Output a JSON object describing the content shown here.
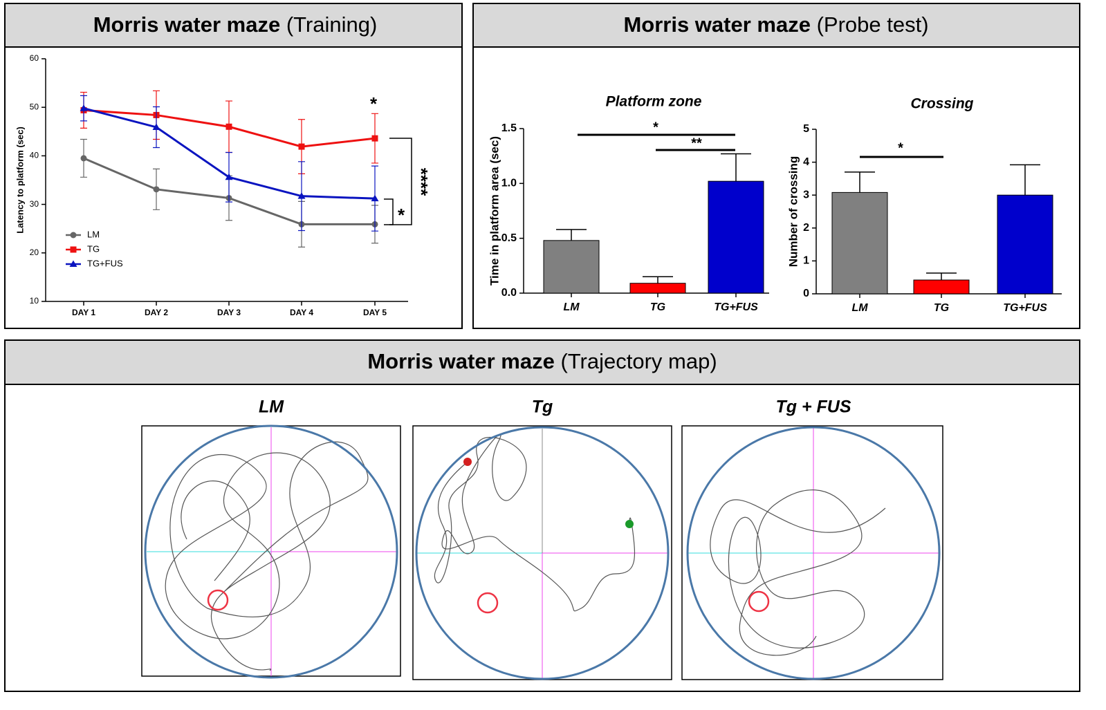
{
  "panels": [
    {
      "title": "Morris water maze",
      "subtitle": "(Training)"
    },
    {
      "title": "Morris water maze",
      "subtitle": "(Probe test)"
    },
    {
      "title": "Morris water maze",
      "subtitle": "(Trajectory map)",
      "maps": [
        "LM",
        "Tg",
        "Tg + FUS"
      ]
    }
  ],
  "chart_data": [
    {
      "type": "line",
      "ylabel": "Latency to platform (sec)",
      "categories": [
        "DAY 1",
        "DAY 2",
        "DAY 3",
        "DAY 4",
        "DAY 5"
      ],
      "ylim": [
        10,
        60
      ],
      "yticks": [
        10,
        20,
        30,
        40,
        50,
        60
      ],
      "series": [
        {
          "name": "LM",
          "color": "#666666",
          "marker": "circle",
          "values": [
            39.5,
            33.1,
            31.3,
            25.9,
            25.9
          ],
          "errors": [
            3.9,
            4.2,
            4.6,
            4.7,
            3.9
          ]
        },
        {
          "name": "TG",
          "color": "#ee1111",
          "marker": "square",
          "values": [
            49.4,
            48.4,
            46.0,
            41.9,
            43.6
          ],
          "errors": [
            3.7,
            5.0,
            5.3,
            5.6,
            5.1
          ]
        },
        {
          "name": "TG+FUS",
          "color": "#0a14c0",
          "marker": "triangle",
          "values": [
            49.8,
            45.9,
            35.6,
            31.7,
            31.2
          ],
          "errors": [
            2.6,
            4.2,
            5.1,
            7.1,
            6.7
          ]
        }
      ],
      "annotations": [
        "*",
        "****",
        "*"
      ]
    },
    {
      "type": "bar",
      "title": "Platform zone",
      "ylabel": "Time in platform area (sec)",
      "categories": [
        "LM",
        "TG",
        "TG+FUS"
      ],
      "values": [
        0.48,
        0.09,
        1.02
      ],
      "errors": [
        0.1,
        0.06,
        0.25
      ],
      "colors": [
        "#808080",
        "#ff0000",
        "#0000cc"
      ],
      "ylim": [
        0,
        1.5
      ],
      "yticks": [
        {
          "value": 0,
          "label": "0.0"
        },
        0.5,
        {
          "value": 1,
          "label": "1.0"
        },
        1.5
      ],
      "annotations": [
        "*",
        "**"
      ]
    },
    {
      "type": "bar",
      "title": "Crossing",
      "ylabel": "Number of crossing",
      "categories": [
        "LM",
        "TG",
        "TG+FUS"
      ],
      "values": [
        3.08,
        0.42,
        3.0
      ],
      "errors": [
        0.62,
        0.21,
        0.92
      ],
      "colors": [
        "#808080",
        "#ff0000",
        "#0000cc"
      ],
      "ylim": [
        0,
        5
      ],
      "yticks": [
        0,
        1,
        2,
        3,
        4,
        5
      ],
      "annotations": [
        "*"
      ]
    }
  ]
}
